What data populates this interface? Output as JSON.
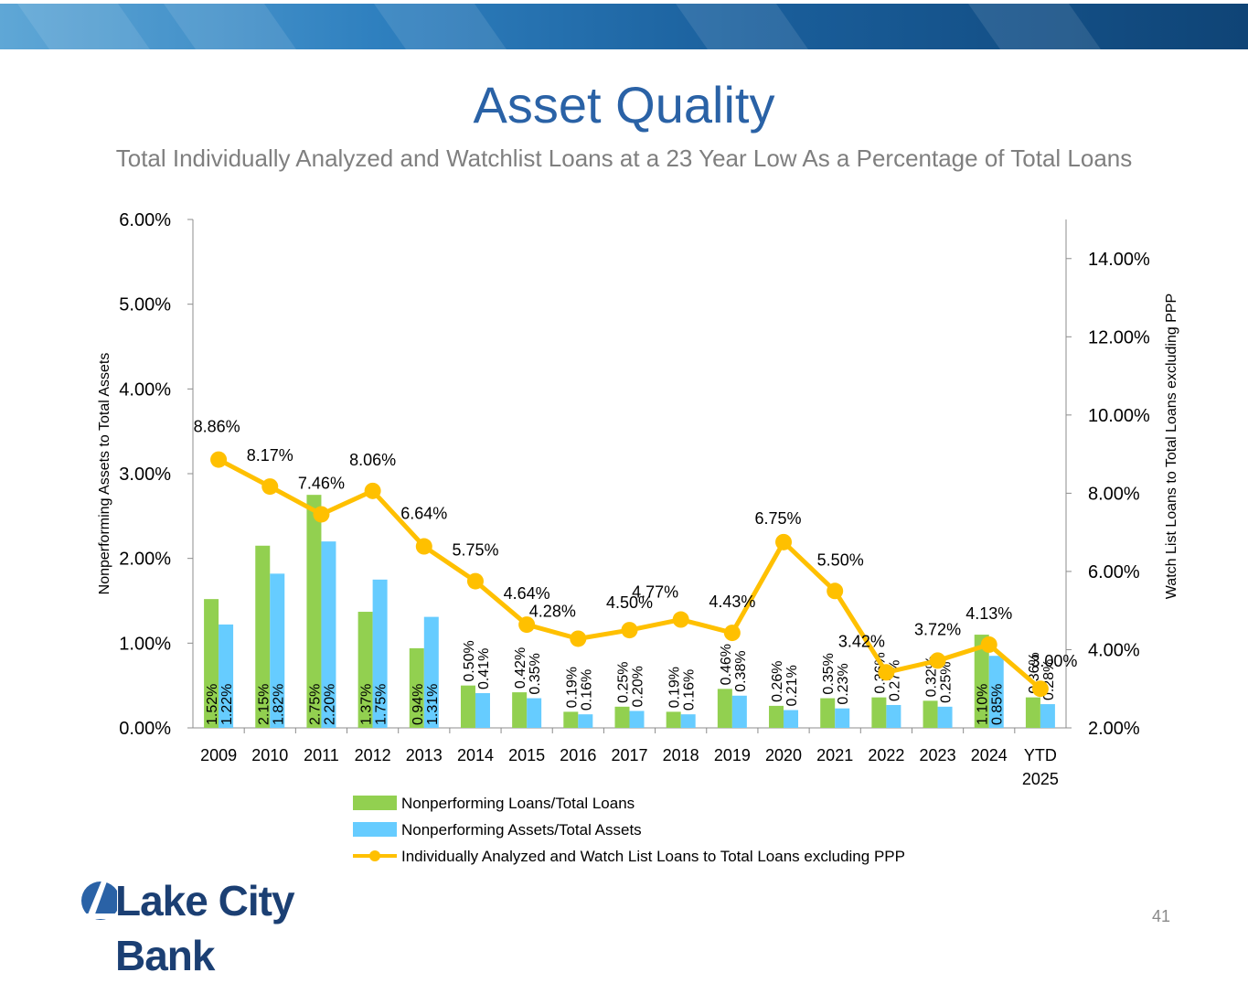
{
  "slide": {
    "title": "Asset Quality",
    "subtitle": "Total Individually Analyzed and Watchlist Loans at a 23 Year Low As a Percentage of Total Loans",
    "page_number": "41",
    "logo_text": "Lake City Bank"
  },
  "colors": {
    "banner": "#1a5f9c",
    "title": "#2a62a6",
    "npl_bar": "#92d050",
    "npa_bar": "#66ccff",
    "line": "#ffc000"
  },
  "chart_data": {
    "type": "bar",
    "title": "",
    "categories": [
      "2009",
      "2010",
      "2011",
      "2012",
      "2013",
      "2014",
      "2015",
      "2016",
      "2017",
      "2018",
      "2019",
      "2020",
      "2021",
      "2022",
      "2023",
      "2024",
      "YTD 2025"
    ],
    "ylabel": "Nonperforming Assets to Total Assets",
    "y2label": "Watch List Loans to Total Loans excluding PPP",
    "ylim": [
      0,
      6
    ],
    "y_ticks": [
      "0.00%",
      "1.00%",
      "2.00%",
      "3.00%",
      "4.00%",
      "5.00%",
      "6.00%"
    ],
    "y2lim": [
      2,
      15
    ],
    "y2_ticks": [
      "2.00%",
      "4.00%",
      "6.00%",
      "8.00%",
      "10.00%",
      "12.00%",
      "14.00%"
    ],
    "legend_position": "bottom",
    "series": [
      {
        "name": "Nonperforming Loans/Total Loans",
        "type": "bar",
        "axis": "left",
        "values": [
          1.52,
          2.15,
          2.75,
          1.37,
          0.94,
          0.5,
          0.42,
          0.19,
          0.25,
          0.19,
          0.46,
          0.26,
          0.35,
          0.36,
          0.32,
          1.1,
          0.36
        ],
        "labels": [
          "1.52%",
          "2.15%",
          "2.75%",
          "1.37%",
          "0.94%",
          "0.50%",
          "0.42%",
          "0.19%",
          "0.25%",
          "0.19%",
          "0.46%",
          "0.26%",
          "0.35%",
          "0.36%",
          "0.32%",
          "1.10%",
          "0.36%"
        ]
      },
      {
        "name": "Nonperforming Assets/Total Assets",
        "type": "bar",
        "axis": "left",
        "values": [
          1.22,
          1.82,
          2.2,
          1.75,
          1.31,
          0.41,
          0.35,
          0.16,
          0.2,
          0.16,
          0.38,
          0.21,
          0.23,
          0.27,
          0.25,
          0.85,
          0.28
        ],
        "labels": [
          "1.22%",
          "1.82%",
          "2.20%",
          "1.75%",
          "1.31%",
          "0.41%",
          "0.35%",
          "0.16%",
          "0.20%",
          "0.16%",
          "0.38%",
          "0.21%",
          "0.23%",
          "0.27%",
          "0.25%",
          "0.85%",
          "0.28%"
        ]
      },
      {
        "name": "Individually Analyzed and Watch List Loans to Total Loans excluding PPP",
        "type": "line",
        "axis": "right",
        "values": [
          8.86,
          8.17,
          7.46,
          8.06,
          6.64,
          5.75,
          4.64,
          4.28,
          4.5,
          4.77,
          4.43,
          6.75,
          5.5,
          3.42,
          3.72,
          4.13,
          3.0
        ],
        "labels": [
          "8.86%",
          "8.17%",
          "7.46%",
          "8.06%",
          "6.64%",
          "5.75%",
          "4.64%",
          "4.28%",
          "4.50%",
          "4.77%",
          "4.43%",
          "6.75%",
          "5.50%",
          "3.42%",
          "3.72%",
          "4.13%",
          "3.00%"
        ]
      }
    ]
  }
}
